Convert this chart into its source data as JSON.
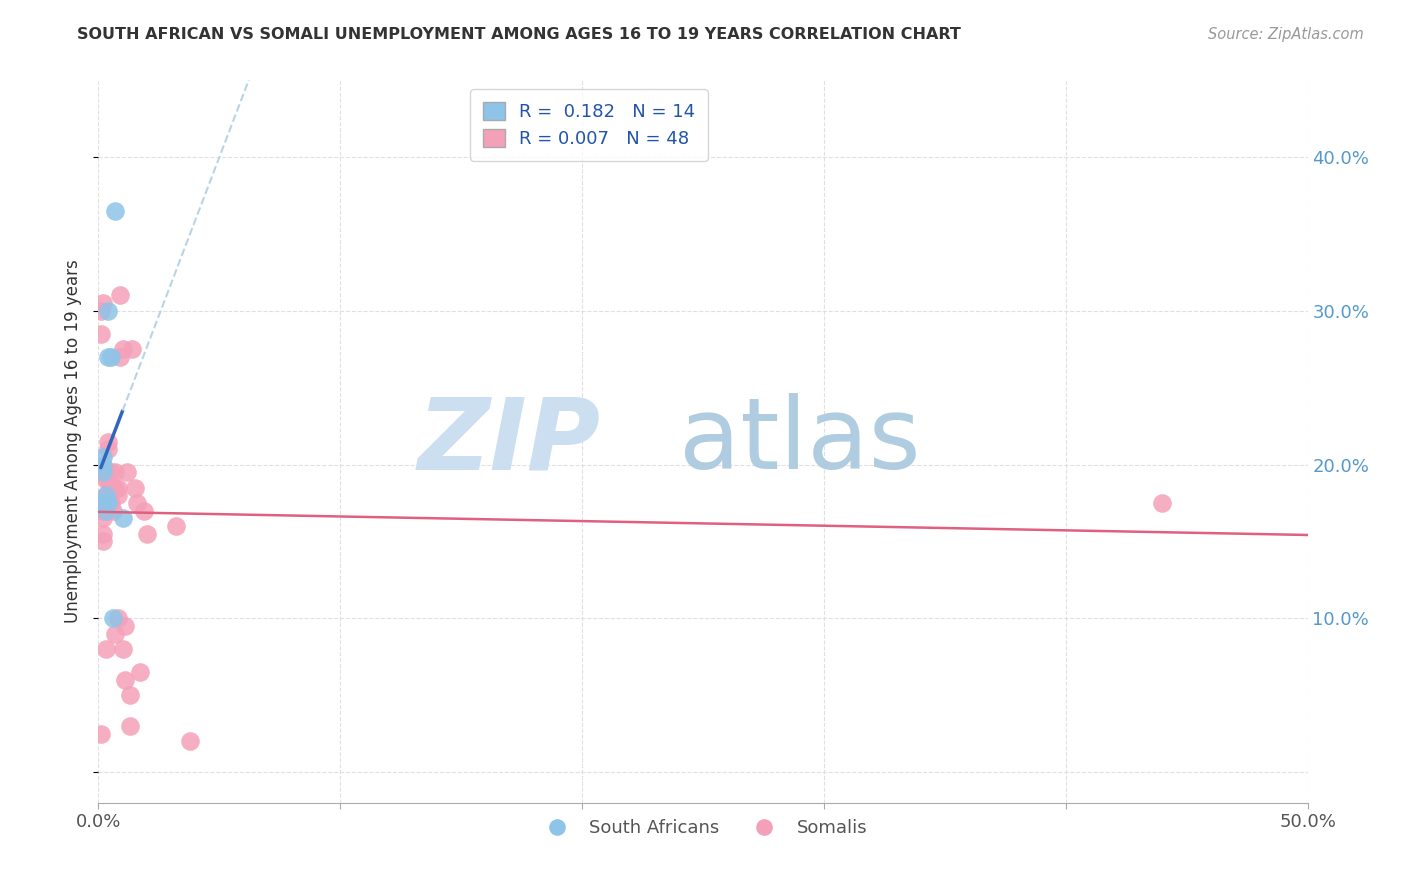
{
  "title": "SOUTH AFRICAN VS SOMALI UNEMPLOYMENT AMONG AGES 16 TO 19 YEARS CORRELATION CHART",
  "source": "Source: ZipAtlas.com",
  "ylabel": "Unemployment Among Ages 16 to 19 years",
  "xlim": [
    0.0,
    0.5
  ],
  "ylim": [
    -0.02,
    0.45
  ],
  "plot_ylim": [
    0.0,
    0.45
  ],
  "south_africans_x": [
    0.001,
    0.002,
    0.002,
    0.002,
    0.003,
    0.003,
    0.003,
    0.004,
    0.004,
    0.004,
    0.005,
    0.006,
    0.007,
    0.01
  ],
  "south_africans_y": [
    0.175,
    0.195,
    0.2,
    0.205,
    0.17,
    0.175,
    0.18,
    0.3,
    0.27,
    0.175,
    0.27,
    0.1,
    0.365,
    0.165
  ],
  "somalis_x": [
    0.001,
    0.001,
    0.001,
    0.002,
    0.002,
    0.002,
    0.002,
    0.002,
    0.002,
    0.003,
    0.003,
    0.003,
    0.003,
    0.003,
    0.003,
    0.004,
    0.004,
    0.004,
    0.004,
    0.005,
    0.005,
    0.005,
    0.006,
    0.006,
    0.007,
    0.007,
    0.007,
    0.008,
    0.008,
    0.008,
    0.009,
    0.009,
    0.01,
    0.01,
    0.011,
    0.011,
    0.012,
    0.013,
    0.013,
    0.014,
    0.015,
    0.016,
    0.017,
    0.019,
    0.02,
    0.032,
    0.038,
    0.44
  ],
  "somalis_y": [
    0.3,
    0.285,
    0.025,
    0.305,
    0.175,
    0.17,
    0.165,
    0.155,
    0.15,
    0.08,
    0.175,
    0.195,
    0.19,
    0.18,
    0.17,
    0.215,
    0.21,
    0.19,
    0.175,
    0.195,
    0.185,
    0.175,
    0.185,
    0.17,
    0.195,
    0.185,
    0.09,
    0.185,
    0.18,
    0.1,
    0.31,
    0.27,
    0.275,
    0.08,
    0.095,
    0.06,
    0.195,
    0.05,
    0.03,
    0.275,
    0.185,
    0.175,
    0.065,
    0.17,
    0.155,
    0.16,
    0.02,
    0.175
  ],
  "sa_color": "#8ec4e8",
  "somali_color": "#f4a0b8",
  "sa_trendline_color": "#3366bb",
  "somali_trendline_color": "#e06080",
  "dashed_line_color": "#b8d4e8",
  "background_color": "#ffffff",
  "grid_color": "#dddddd",
  "sa_R": "0.182",
  "sa_N": "14",
  "somali_R": "0.007",
  "somali_N": "48"
}
